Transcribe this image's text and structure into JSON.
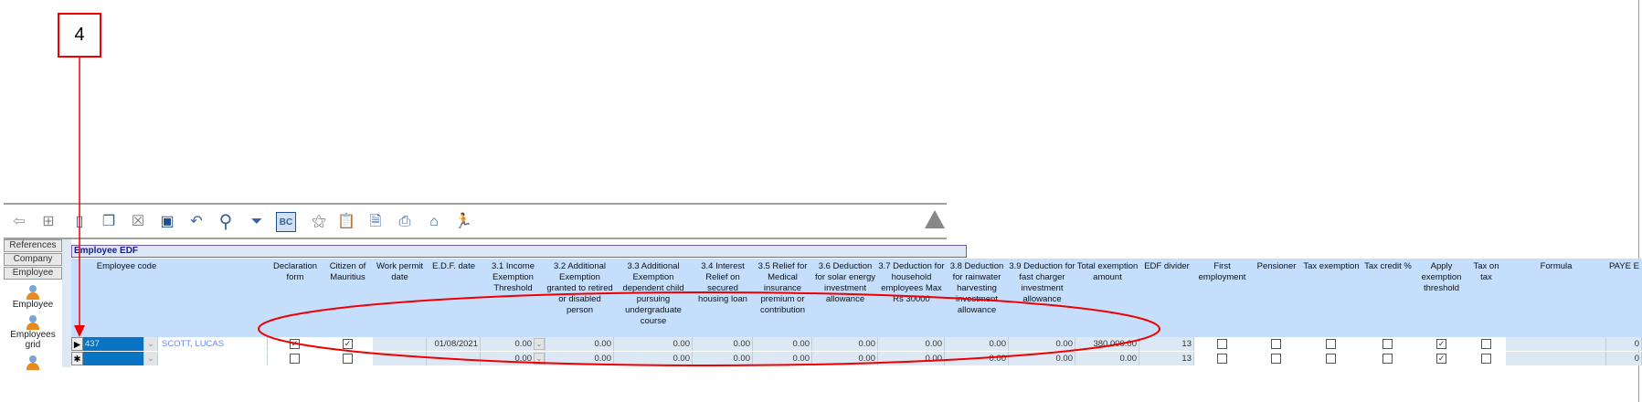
{
  "annotation": {
    "label": "4"
  },
  "toolbar": {
    "icons": [
      "back-icon",
      "tree-icon",
      "new-icon",
      "copy-icon",
      "delete-icon",
      "save-icon",
      "undo-icon",
      "search-icon",
      "filter-icon",
      "sort-icon",
      "wand-icon",
      "clipboard-icon",
      "preview-icon",
      "print-icon",
      "home-icon",
      "run-icon"
    ],
    "warning_count": "0"
  },
  "sidebar": {
    "tabs": [
      "References",
      "Company",
      "Employee"
    ],
    "items": [
      {
        "label": "Employee"
      },
      {
        "label": "Employees grid"
      },
      {
        "label": ""
      }
    ]
  },
  "panel": {
    "title": "Employee EDF"
  },
  "columns": [
    "Employee code",
    "Declaration form",
    "Citizen of Mauritius",
    "Work permit date",
    "E.D.F. date",
    "3.1 Income Exemption Threshold",
    "3.2 Additional Exemption granted to retired or disabled person",
    "3.3 Additional Exemption dependent child pursuing undergraduate course",
    "3.4 Interest Relief on secured housing loan",
    "3.5 Relief for Medical insurance premium or contribution",
    "3.6 Deduction for solar energy investment allowance",
    "3.7 Deduction for household employees Max Rs 30000",
    "3.8 Deduction for rainwater harvesting investment allowance",
    "3.9 Deduction for fast charger investment allowance",
    "Total exemption amount",
    "EDF divider",
    "First employment",
    "Pensioner",
    "Tax exemption",
    "Tax credit %",
    "Apply exemption threshold",
    "Tax on tax",
    "Formula",
    "PAYE E"
  ],
  "rows": [
    {
      "selector": "current",
      "code": "437",
      "name": "SCOTT, LUCAS",
      "declaration": true,
      "citizen": true,
      "work_permit": "",
      "edf_date": "01/08/2021",
      "v31": "0.00",
      "v32": "0.00",
      "v33": "0.00",
      "v34": "0.00",
      "v35": "0.00",
      "v36": "0.00",
      "v37": "0.00",
      "v38": "0.00",
      "v39": "0.00",
      "total": "380,000.00",
      "divider": "13",
      "first": false,
      "pensioner": false,
      "tax_exempt": false,
      "tax_credit": false,
      "apply": true,
      "tax_on_tax": false,
      "formula": "",
      "paye": "0"
    },
    {
      "selector": "new",
      "code": "",
      "name": "",
      "declaration": false,
      "citizen": false,
      "work_permit": "",
      "edf_date": "",
      "v31": "0.00",
      "v32": "0.00",
      "v33": "0.00",
      "v34": "0.00",
      "v35": "0.00",
      "v36": "0.00",
      "v37": "0.00",
      "v38": "0.00",
      "v39": "0.00",
      "total": "0.00",
      "divider": "13",
      "first": false,
      "pensioner": false,
      "tax_exempt": false,
      "tax_credit": false,
      "apply": true,
      "tax_on_tax": false,
      "formula": "",
      "paye": "0"
    }
  ],
  "colors": {
    "annotation": "#e00000",
    "header": "#c5defc",
    "selected_cell": "#0a74c4"
  }
}
